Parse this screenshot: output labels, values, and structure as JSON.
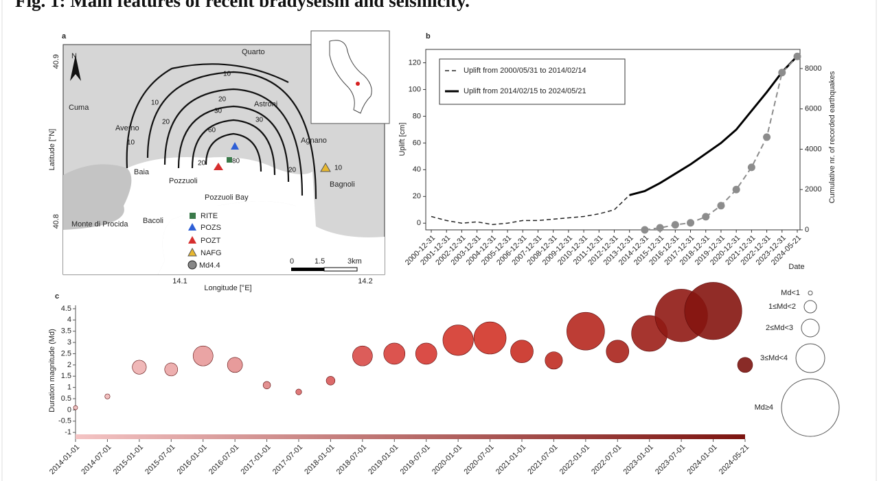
{
  "title": "Fig. 1: Main features of recent bradyseism and seismicity.",
  "map": {
    "panel_label": "a",
    "north": "N",
    "places": [
      "Quarto",
      "Cuma",
      "Averno",
      "Astroni",
      "Agnano",
      "Baia",
      "Pozzuoli",
      "Pozzuoli Bay",
      "Bagnoli",
      "Bacoli",
      "Monte di Procida"
    ],
    "contours": [
      "10",
      "20",
      "30",
      "60",
      "80",
      "10",
      "20",
      "30",
      "10",
      "20",
      "10",
      "20"
    ],
    "legend": [
      "RITE",
      "POZS",
      "POZT",
      "NAFG",
      "Md4.4"
    ],
    "scale": [
      "0",
      "1.5",
      "3km"
    ],
    "lat_ticks": [
      "40.9",
      "40.8"
    ],
    "lon_ticks": [
      "14.1",
      "14.2"
    ],
    "xlabel": "Longitude [°E]",
    "ylabel": "Latitude [°N]"
  },
  "chart_data": [
    {
      "type": "line",
      "panel_label": "b",
      "xlabel": "Date",
      "ylabel": "Uplift [cm]",
      "y2label": "Cumulative nr. of recorded earthquakes",
      "categories": [
        "2000-12-31",
        "2001-12-31",
        "2002-12-31",
        "2003-12-31",
        "2004-12-31",
        "2005-12-31",
        "2006-12-31",
        "2007-12-31",
        "2008-12-31",
        "2009-12-31",
        "2010-12-31",
        "2011-12-31",
        "2012-12-31",
        "2013-12-31",
        "2014-12-31",
        "2015-12-31",
        "2016-12-31",
        "2017-12-31",
        "2018-12-31",
        "2019-12-31",
        "2020-12-31",
        "2021-12-31",
        "2022-12-31",
        "2023-12-31",
        "2024-05-21"
      ],
      "ylim": [
        -5,
        130
      ],
      "yticks": [
        0,
        20,
        40,
        60,
        80,
        100,
        120
      ],
      "y2lim": [
        0,
        8950
      ],
      "y2ticks": [
        0,
        2000,
        4000,
        6000,
        8000
      ],
      "series": [
        {
          "name": "Uplift from 2000/05/31 to 2014/02/14",
          "color": "#222222",
          "dashed": true,
          "values": [
            5,
            2,
            0,
            1,
            -1,
            0,
            2,
            2,
            3,
            4,
            5,
            7,
            10,
            21,
            null,
            null,
            null,
            null,
            null,
            null,
            null,
            null,
            null,
            null,
            null
          ]
        },
        {
          "name": "Uplift from 2014/02/15 to 2024/05/21",
          "color": "#000000",
          "dashed": false,
          "values": [
            null,
            null,
            null,
            null,
            null,
            null,
            null,
            null,
            null,
            null,
            null,
            null,
            null,
            21,
            24,
            30,
            37,
            44,
            52,
            60,
            70,
            84,
            98,
            113,
            125
          ]
        },
        {
          "axis": "y2",
          "color": "#8c8c8c",
          "marker": "circle",
          "values": [
            null,
            null,
            null,
            null,
            null,
            null,
            null,
            null,
            null,
            null,
            null,
            null,
            null,
            null,
            0,
            100,
            250,
            350,
            650,
            1200,
            2000,
            3100,
            4600,
            7800,
            8600
          ]
        }
      ]
    },
    {
      "type": "bubble",
      "panel_label": "c",
      "ylabel": "Duration magnitude (Md)",
      "categories": [
        "2014-01-01",
        "2014-07-01",
        "2015-01-01",
        "2015-07-01",
        "2016-01-01",
        "2016-07-01",
        "2017-01-01",
        "2017-07-01",
        "2018-01-01",
        "2018-07-01",
        "2019-01-01",
        "2019-07-01",
        "2020-01-01",
        "2020-07-01",
        "2021-01-01",
        "2021-07-01",
        "2022-01-01",
        "2022-07-01",
        "2023-01-01",
        "2023-07-01",
        "2024-01-01",
        "2024-05-21"
      ],
      "values": [
        0.1,
        0.6,
        1.9,
        1.8,
        2.4,
        2.0,
        1.1,
        0.8,
        1.3,
        2.4,
        2.5,
        2.5,
        3.1,
        3.2,
        2.6,
        2.2,
        3.5,
        2.6,
        3.4,
        4.2,
        4.4,
        2.0
      ],
      "colors": [
        "#f4c4c4",
        "#f1b9b9",
        "#eeb0b0",
        "#eba6a6",
        "#e89a9a",
        "#e49090",
        "#e08585",
        "#dc6a6a",
        "#d85a5a",
        "#d84b48",
        "#d8413c",
        "#d63a33",
        "#d4372c",
        "#d13428",
        "#c92f24",
        "#c02c22",
        "#b6281f",
        "#aa241c",
        "#9c1f18",
        "#901a14",
        "#851510",
        "#7c1410"
      ],
      "ylim": [
        -1.3,
        4.65
      ],
      "yticks": [
        -1,
        -0.5,
        0,
        0.5,
        1,
        1.5,
        2,
        2.5,
        3,
        3.5,
        4,
        4.5
      ],
      "size_legend": [
        "Md<1",
        "1≤Md<2",
        "2≤Md<3",
        "3≤Md<4",
        "Md≥4"
      ]
    }
  ]
}
